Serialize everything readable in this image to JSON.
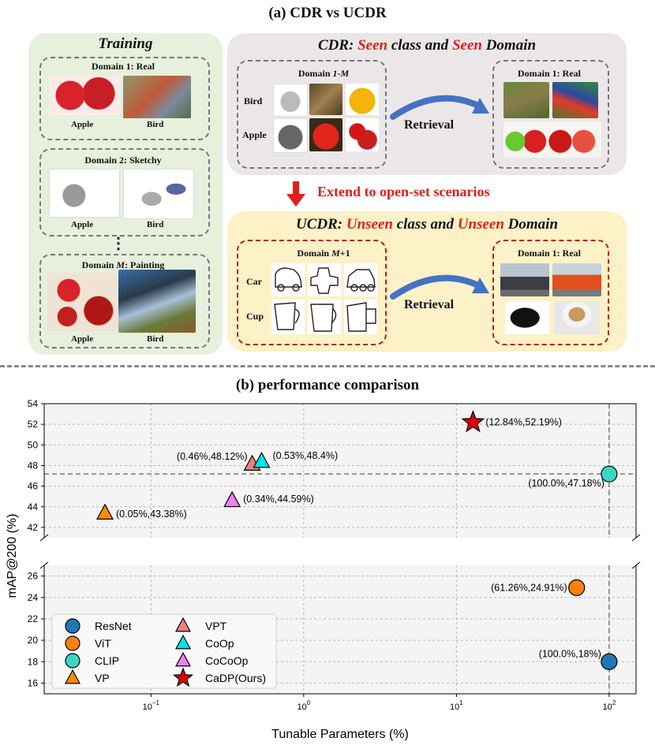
{
  "figure": {
    "title_a": "(a) CDR vs UCDR",
    "title_b": "(b) performance comparison"
  },
  "training": {
    "title": "Training",
    "domains": [
      {
        "label": "Domain 1: Real",
        "left_caption": "Apple",
        "right_caption": "Bird"
      },
      {
        "label": "Domain 2: Sketchy",
        "left_caption": "Apple",
        "right_caption": "Bird"
      },
      {
        "label_prefix": "Domain ",
        "label_italic": "M",
        "label_suffix": ": Painting",
        "left_caption": "Apple",
        "right_caption": "Bird"
      }
    ],
    "ellipsis": "⋮"
  },
  "cdr": {
    "head_1": "CDR: ",
    "head_2": "Seen",
    "head_3": " class and ",
    "head_4": "Seen",
    "head_5": " Domain",
    "query_label_prefix": "Domain ",
    "query_label_italic": "1-M",
    "row_labels": [
      "Bird",
      "Apple"
    ],
    "retrieval": "Retrieval",
    "gallery_label": "Domain 1: Real"
  },
  "extend": "Extend to open-set scenarios",
  "ucdr": {
    "head_1": "UCDR: ",
    "head_2": "Unseen",
    "head_3": " class and ",
    "head_4": "Unseen",
    "head_5": " Domain",
    "query_label_prefix": "Domain ",
    "query_label_italic": "M",
    "query_label_suffix": "+1",
    "row_labels": [
      "Car",
      "Cup"
    ],
    "retrieval": "Retrieval",
    "gallery_label": "Domain 1: Real"
  },
  "colors": {
    "training_bg": "#e6f0dc",
    "cdr_bg": "#ebe7e9",
    "ucdr_bg": "#fdf1c8",
    "arrow_blue": "#4472c4",
    "red": "#e0201c"
  },
  "chart_data": {
    "type": "scatter",
    "xlabel": "Tunable Parameters (%)",
    "ylabel": "mAP@200 (%)",
    "xscale": "log",
    "xlim": [
      0.02,
      150
    ],
    "ylim_upper": [
      41,
      54
    ],
    "ylim_lower": [
      15,
      27
    ],
    "axis_break": true,
    "grid": true,
    "legend_position": "lower-left",
    "reference_lines": {
      "x": 100,
      "y": 47.18
    },
    "x_ticks": [
      {
        "value": 0.1,
        "base": "10",
        "exp": "−1"
      },
      {
        "value": 1,
        "base": "10",
        "exp": "0"
      },
      {
        "value": 10,
        "base": "10",
        "exp": "1"
      },
      {
        "value": 100,
        "base": "10",
        "exp": "2"
      }
    ],
    "y_ticks_upper": [
      "42",
      "44",
      "46",
      "48",
      "50",
      "52",
      "54"
    ],
    "y_ticks_lower": [
      "16",
      "18",
      "20",
      "22",
      "24",
      "26"
    ],
    "series": [
      {
        "name": "ResNet",
        "marker": "circle",
        "color": "#1f77b4",
        "x": 100,
        "y": 18,
        "label": "(100.0%,18%)"
      },
      {
        "name": "ViT",
        "marker": "circle",
        "color": "#ff7f0e",
        "x": 61.26,
        "y": 24.91,
        "label": "(61.26%,24.91%)"
      },
      {
        "name": "CLIP",
        "marker": "circle",
        "color": "#3fd5c4",
        "x": 100,
        "y": 47.18,
        "label": "(100.0%,47.18%)"
      },
      {
        "name": "VP",
        "marker": "triangle",
        "color": "#ff8c00",
        "x": 0.05,
        "y": 43.38,
        "label": "(0.05%,43.38%)"
      },
      {
        "name": "VPT",
        "marker": "triangle",
        "color": "#f08080",
        "x": 0.46,
        "y": 48.12,
        "label": "(0.46%,48.12%)"
      },
      {
        "name": "CoOp",
        "marker": "triangle",
        "color": "#00e5e5",
        "x": 0.53,
        "y": 48.4,
        "label": "(0.53%,48.4%)"
      },
      {
        "name": "CoCoOp",
        "marker": "triangle",
        "color": "#ee82ee",
        "x": 0.34,
        "y": 44.59,
        "label": "(0.34%,44.59%)"
      },
      {
        "name": "CaDP(Ours)",
        "marker": "star",
        "color": "#e00000",
        "x": 12.84,
        "y": 52.19,
        "label": "(12.84%,52.19%)"
      }
    ]
  }
}
